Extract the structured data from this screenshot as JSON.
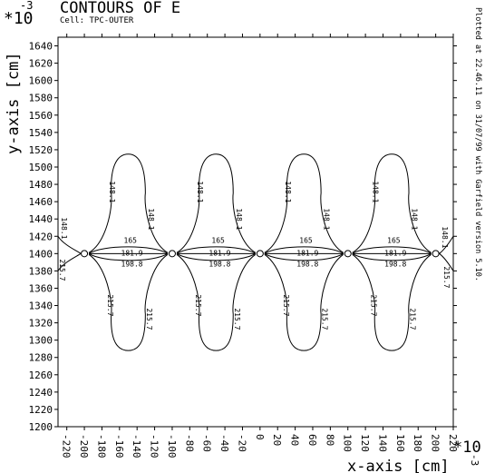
{
  "header": {
    "exponent_top": "-3",
    "multiplier_top": "*10",
    "title": "CONTOURS OF E",
    "cell": "Cell: TPC-OUTER",
    "plot_note": "Plotted at 22.46.11 on 31/07/99 with Garfield version 5.10."
  },
  "chart_data": {
    "type": "contour",
    "title": "CONTOURS OF E",
    "xlabel": "x-axis [cm]",
    "ylabel": "y-axis [cm]",
    "x_scale_label": "*10",
    "x_scale_exponent": "-3",
    "y_scale_label": "*10",
    "y_scale_exponent": "-3",
    "xlim": [
      -230,
      220
    ],
    "ylim": [
      1200,
      1650
    ],
    "xticks": [
      -220,
      -200,
      -180,
      -160,
      -140,
      -120,
      -100,
      -80,
      -60,
      -40,
      -20,
      0,
      20,
      40,
      60,
      80,
      100,
      120,
      140,
      160,
      180,
      200,
      220
    ],
    "yticks": [
      1200,
      1220,
      1240,
      1260,
      1280,
      1300,
      1320,
      1340,
      1360,
      1380,
      1400,
      1420,
      1440,
      1460,
      1480,
      1500,
      1520,
      1540,
      1560,
      1580,
      1600,
      1620,
      1640
    ],
    "wire_x": [
      -200,
      -100,
      0,
      100,
      200
    ],
    "wire_y": 1400,
    "contour_levels": [
      "148.1",
      "165",
      "181.9",
      "198.8",
      "215.7"
    ],
    "label_148": "148.1",
    "label_165": "165",
    "label_181": "181.9",
    "label_198": "198.8",
    "label_215": "215.7"
  }
}
